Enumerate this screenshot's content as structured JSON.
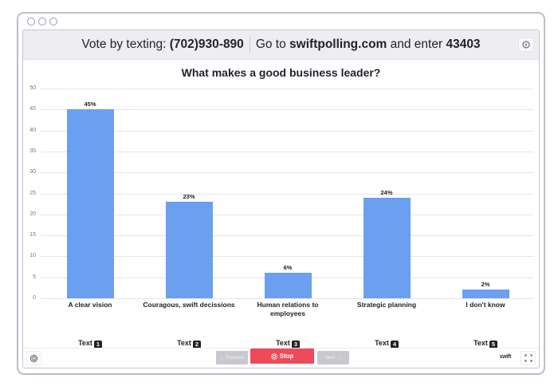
{
  "window": {
    "controls": [
      "circle",
      "circle",
      "circle"
    ]
  },
  "header": {
    "vote_prefix": "Vote by texting:",
    "phone": "(702)930-890",
    "goto_prefix": "Go to",
    "site": "swiftpolling.com",
    "enter_text": "and enter",
    "code": "43403",
    "info_icon": "info-icon"
  },
  "poll": {
    "title": "What makes a good business leader?"
  },
  "chart_data": {
    "type": "bar",
    "title": "What makes a good business leader?",
    "categories": [
      "A clear vision",
      "Couragous, swift decissions",
      "Human relations to employees",
      "Strategic planning",
      "I don't know"
    ],
    "values": [
      45,
      23,
      6,
      24,
      2
    ],
    "value_labels": [
      "45%",
      "23%",
      "6%",
      "24%",
      "2%"
    ],
    "xlabel": "",
    "ylabel": "",
    "ylim": [
      0,
      50
    ],
    "yticks": [
      0,
      5,
      10,
      15,
      20,
      25,
      30,
      35,
      40,
      45,
      50
    ],
    "grid": true,
    "bar_color": "#6b9ff0"
  },
  "answers": [
    {
      "label": "A clear vision",
      "label_lines": [
        "A clear vision"
      ],
      "pct": "45%",
      "text_label": "Text",
      "number": "1"
    },
    {
      "label": "Couragous, swift decissions",
      "label_lines": [
        "Couragous, swift decissions"
      ],
      "pct": "23%",
      "text_label": "Text",
      "number": "2"
    },
    {
      "label": "Human relations to employees",
      "label_lines": [
        "Human relations to",
        "employees"
      ],
      "pct": "6%",
      "text_label": "Text",
      "number": "3"
    },
    {
      "label": "Strategic planning",
      "label_lines": [
        "Strategic planning"
      ],
      "pct": "24%",
      "text_label": "Text",
      "number": "4"
    },
    {
      "label": "I don't know",
      "label_lines": [
        "I don't know"
      ],
      "pct": "2%",
      "text_label": "Text",
      "number": "5"
    }
  ],
  "footer": {
    "settings_icon": "gear-icon",
    "previous_label": "← Previous",
    "stop_label": "Stop",
    "next_label": "Next →",
    "brand": "swift",
    "fullscreen_icon": "fullscreen-icon"
  },
  "colors": {
    "accent_stop": "#ef4a5a",
    "bar": "#6b9ff0",
    "disabled_button": "#c8c8ce",
    "header_bg": "#eeeef2"
  }
}
